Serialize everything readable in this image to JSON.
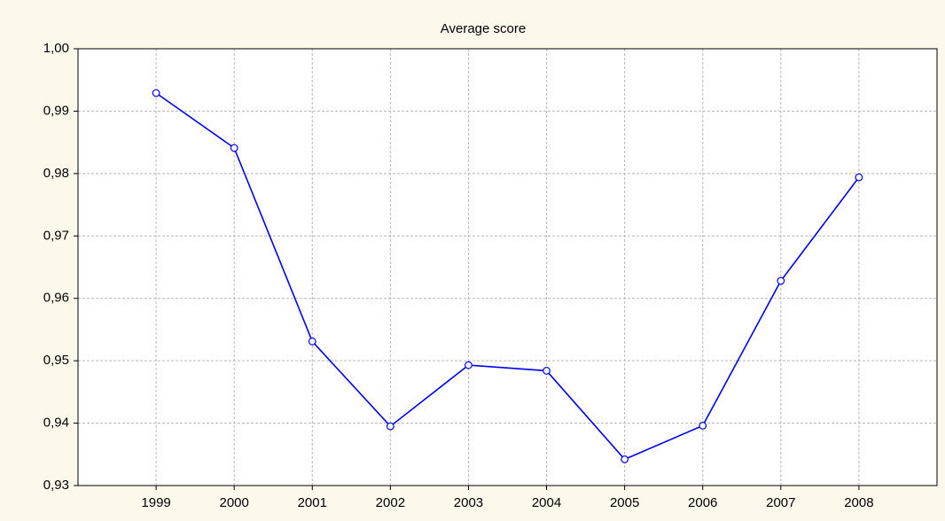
{
  "chart_data": {
    "type": "line",
    "title": "Average score",
    "x": [
      1999,
      2000,
      2001,
      2002,
      2003,
      2004,
      2005,
      2006,
      2007,
      2008
    ],
    "series": [
      {
        "name": "Average score",
        "color": "#0000ee",
        "values": [
          0.9929,
          0.9841,
          0.9531,
          0.9395,
          0.9493,
          0.9484,
          0.9342,
          0.9396,
          0.9628,
          0.9794
        ]
      }
    ],
    "xlim": [
      1998,
      2009
    ],
    "xticks": [
      1999,
      2000,
      2001,
      2002,
      2003,
      2004,
      2005,
      2006,
      2007,
      2008
    ],
    "ylim": [
      0.93,
      1.0
    ],
    "yticks": [
      {
        "value": 0.93,
        "label": "0,93"
      },
      {
        "value": 0.94,
        "label": "0,94"
      },
      {
        "value": 0.95,
        "label": "0,95"
      },
      {
        "value": 0.96,
        "label": "0,96"
      },
      {
        "value": 0.97,
        "label": "0,97"
      },
      {
        "value": 0.98,
        "label": "0,98"
      },
      {
        "value": 0.99,
        "label": "0,99"
      },
      {
        "value": 1.0,
        "label": "1,00"
      }
    ],
    "grid": true
  }
}
